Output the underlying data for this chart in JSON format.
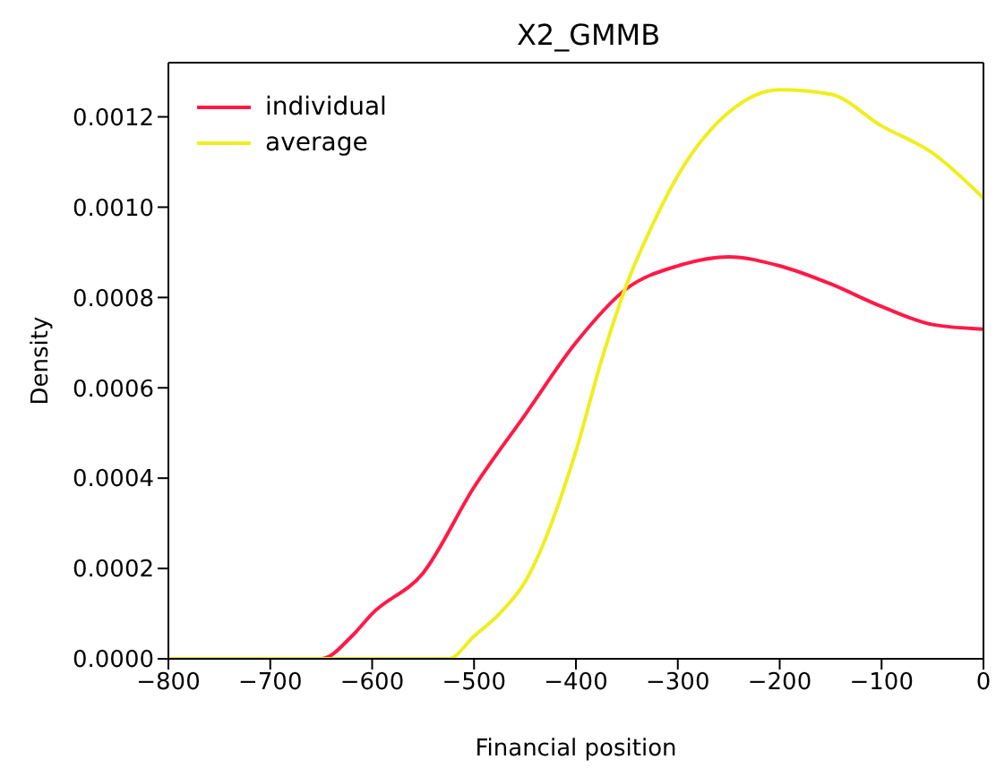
{
  "chart_data": {
    "type": "line",
    "title": "X2_GMMB",
    "xlabel": "Financial position",
    "ylabel": "Density",
    "xlim": [
      -800,
      0
    ],
    "xticks": [
      {
        "value": -800,
        "label": "−800"
      },
      {
        "value": -700,
        "label": "−700"
      },
      {
        "value": -600,
        "label": "−600"
      },
      {
        "value": -500,
        "label": "−500"
      },
      {
        "value": -400,
        "label": "−400"
      },
      {
        "value": -300,
        "label": "−300"
      },
      {
        "value": -200,
        "label": "−200"
      },
      {
        "value": -100,
        "label": "−100"
      },
      0
    ],
    "ylim": [
      0,
      0.00132
    ],
    "yticks": [
      {
        "value": 0,
        "label": "0.0000"
      },
      {
        "value": 0.0002,
        "label": "0.0002"
      },
      {
        "value": 0.0004,
        "label": "0.0004"
      },
      {
        "value": 0.0006,
        "label": "0.0006"
      },
      {
        "value": 0.0008,
        "label": "0.0008"
      },
      {
        "value": 0.001,
        "label": "0.0010"
      },
      {
        "value": 0.0012,
        "label": "0.0012"
      }
    ],
    "legend": "top left",
    "grid": false,
    "line_style": "solid",
    "marker": "none",
    "series": [
      {
        "name": "individual",
        "color": "#ff1a47",
        "x": [
          -800,
          -700,
          -650,
          -620,
          -600,
          -550,
          -500,
          -450,
          -400,
          -350,
          -300,
          -250,
          -200,
          -150,
          -100,
          -50,
          0
        ],
        "values": [
          0,
          0,
          0,
          5e-05,
          0.0001,
          0.00019,
          0.00038,
          0.00054,
          0.0007,
          0.00082,
          0.00087,
          0.00089,
          0.00087,
          0.00083,
          0.00078,
          0.00074,
          0.00073
        ]
      },
      {
        "name": "average",
        "color": "#f0ee1e",
        "x": [
          -800,
          -600,
          -550,
          -525,
          -500,
          -475,
          -450,
          -400,
          -375,
          -350,
          -325,
          -300,
          -250,
          -200,
          -150,
          -100,
          -50,
          0
        ],
        "values": [
          0,
          0,
          0,
          0,
          5e-05,
          0.0001,
          0.00017,
          0.00046,
          0.00066,
          0.00083,
          0.00096,
          0.00107,
          0.00121,
          0.00126,
          0.00125,
          0.00118,
          0.00112,
          0.00102
        ]
      }
    ]
  }
}
